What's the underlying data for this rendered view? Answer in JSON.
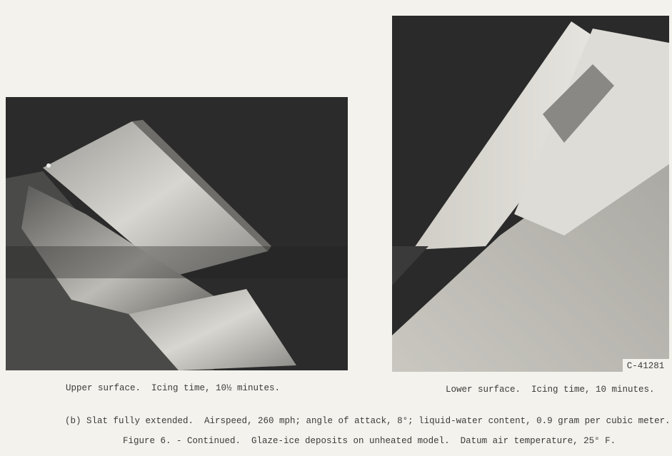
{
  "photos": {
    "left": {
      "caption": "Upper surface.  Icing time, 10½ minutes."
    },
    "right": {
      "caption": "Lower surface.  Icing time, 10 minutes.",
      "label": "C-41281"
    }
  },
  "subcaption": "(b) Slat fully extended.  Airspeed, 260 mph; angle of attack, 8°; liquid-water content, 0.9 gram per cubic meter.",
  "figure_caption": "Figure 6. - Continued.  Glaze-ice deposits on unheated model.  Datum air temperature, 25° F."
}
